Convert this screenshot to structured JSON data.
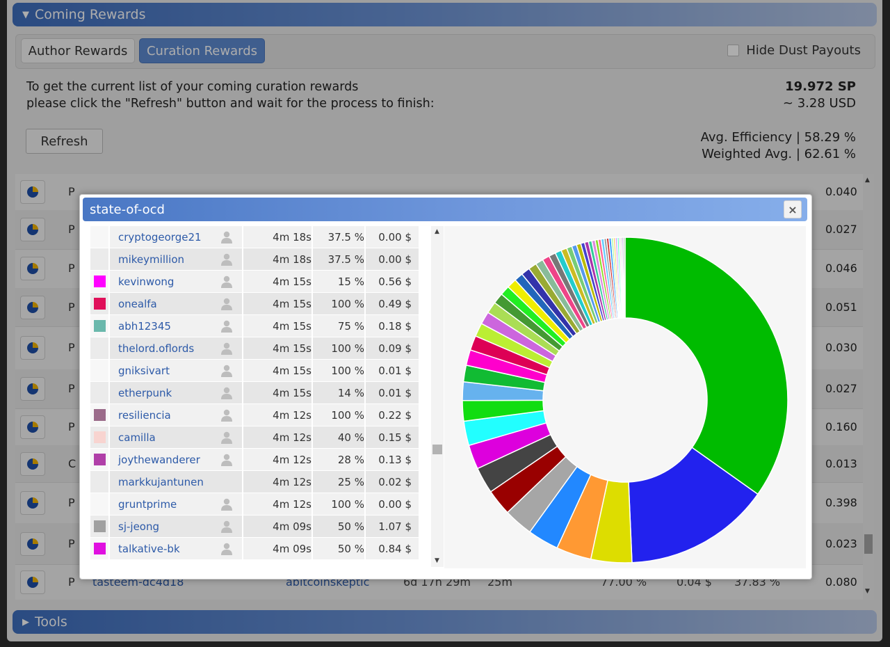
{
  "coming_rewards": {
    "title": "Coming Rewards"
  },
  "tabs": {
    "author": "Author Rewards",
    "curation": "Curation Rewards"
  },
  "hide_dust": "Hide Dust Payouts",
  "info": {
    "line1": "To get the current list of your coming curation rewards",
    "line2": "please click the \"Refresh\" button and wait for the process to finish:"
  },
  "refresh_label": "Refresh",
  "totals": {
    "sp": "19.972 SP",
    "usd": "~ 3.28 USD"
  },
  "efficiency": {
    "avg": "Avg. Efficiency | 58.29 %",
    "weighted": "Weighted Avg. | 62.61 %"
  },
  "table_rows": [
    {
      "type": "P",
      "value": "0.040"
    },
    {
      "type": "P",
      "value": "0.027"
    },
    {
      "type": "P",
      "value": "0.046"
    },
    {
      "type": "P",
      "value": "0.051"
    },
    {
      "type": "P",
      "value": "0.030"
    },
    {
      "type": "P",
      "value": "0.027"
    },
    {
      "type": "P",
      "value": "0.160"
    },
    {
      "type": "C",
      "value": "0.013"
    },
    {
      "type": "P",
      "value": "0.398"
    },
    {
      "type": "P",
      "value": "0.023"
    },
    {
      "type": "P",
      "value": "0.080",
      "permlink": "tasteem-dc4d18",
      "voter": "abitcoinskeptic",
      "age": "6d 17h 29m",
      "vote_time": "25m",
      "efficiency": "77.00 %",
      "usd": "0.04 $",
      "share": "37.83 %"
    }
  ],
  "tools": {
    "title": "Tools"
  },
  "dialog": {
    "title": "state-of-ocd",
    "close": "×",
    "voters": [
      {
        "name": "cryptogeorge21",
        "time": "4m 18s",
        "pct": "37.5 %",
        "usd": "0.00 $",
        "color": "",
        "icon": "user-icon"
      },
      {
        "name": "mikeymillion",
        "time": "4m 18s",
        "pct": "37.5 %",
        "usd": "0.00 $",
        "color": "",
        "icon": "user-icon"
      },
      {
        "name": "kevinwong",
        "time": "4m 15s",
        "pct": "15 %",
        "usd": "0.56 $",
        "color": "#ff00ff",
        "icon": "user-icon"
      },
      {
        "name": "onealfa",
        "time": "4m 15s",
        "pct": "100 %",
        "usd": "0.49 $",
        "color": "#e0105a",
        "icon": "user-icon"
      },
      {
        "name": "abh12345",
        "time": "4m 15s",
        "pct": "75 %",
        "usd": "0.18 $",
        "color": "#6ab8ac",
        "icon": "user-icon"
      },
      {
        "name": "thelord.oflords",
        "time": "4m 15s",
        "pct": "100 %",
        "usd": "0.09 $",
        "color": "",
        "icon": "user-icon"
      },
      {
        "name": "gniksivart",
        "time": "4m 15s",
        "pct": "100 %",
        "usd": "0.01 $",
        "color": "",
        "icon": "user-icon"
      },
      {
        "name": "etherpunk",
        "time": "4m 15s",
        "pct": "14 %",
        "usd": "0.01 $",
        "color": "",
        "icon": "user-icon"
      },
      {
        "name": "resiliencia",
        "time": "4m 12s",
        "pct": "100 %",
        "usd": "0.22 $",
        "color": "#9b6b8a",
        "icon": "user-icon"
      },
      {
        "name": "camilla",
        "time": "4m 12s",
        "pct": "40 %",
        "usd": "0.15 $",
        "color": "#f8d4d0",
        "icon": "user-icon"
      },
      {
        "name": "joythewanderer",
        "time": "4m 12s",
        "pct": "28 %",
        "usd": "0.13 $",
        "color": "#b03fa8",
        "icon": "user-icon"
      },
      {
        "name": "markkujantunen",
        "time": "4m 12s",
        "pct": "25 %",
        "usd": "0.02 $",
        "color": "",
        "icon": ""
      },
      {
        "name": "gruntprime",
        "time": "4m 12s",
        "pct": "100 %",
        "usd": "0.00 $",
        "color": "",
        "icon": "user-icon"
      },
      {
        "name": "sj-jeong",
        "time": "4m 09s",
        "pct": "50 %",
        "usd": "1.07 $",
        "color": "#a0a0a0",
        "icon": "user-icon"
      },
      {
        "name": "talkative-bk",
        "time": "4m 09s",
        "pct": "50 %",
        "usd": "0.84 $",
        "color": "#e010e0",
        "icon": "user-icon"
      }
    ]
  },
  "chart_data": {
    "type": "pie",
    "donut": true,
    "title": "",
    "slices": [
      {
        "value": 36.0,
        "color": "#00bb00"
      },
      {
        "value": 15.0,
        "color": "#2222ee"
      },
      {
        "value": 4.2,
        "color": "#dddd00"
      },
      {
        "value": 3.6,
        "color": "#ff9933"
      },
      {
        "value": 3.2,
        "color": "#2288ff"
      },
      {
        "value": 3.0,
        "color": "#a6a6a6"
      },
      {
        "value": 2.7,
        "color": "#990000"
      },
      {
        "value": 2.7,
        "color": "#444444"
      },
      {
        "value": 2.5,
        "color": "#dd00dd"
      },
      {
        "value": 2.5,
        "color": "#22ffff"
      },
      {
        "value": 2.1,
        "color": "#11dd11"
      },
      {
        "value": 1.9,
        "color": "#66b2ee"
      },
      {
        "value": 1.7,
        "color": "#11bb33"
      },
      {
        "value": 1.6,
        "color": "#ff00cc"
      },
      {
        "value": 1.5,
        "color": "#dd0055"
      },
      {
        "value": 1.4,
        "color": "#bbee33"
      },
      {
        "value": 1.3,
        "color": "#cc66dd"
      },
      {
        "value": 1.2,
        "color": "#aadd55"
      },
      {
        "value": 1.1,
        "color": "#449933"
      },
      {
        "value": 1.0,
        "color": "#22ee22"
      },
      {
        "value": 1.0,
        "color": "#eeee00"
      },
      {
        "value": 0.9,
        "color": "#2266bb"
      },
      {
        "value": 0.9,
        "color": "#3333aa"
      },
      {
        "value": 0.85,
        "color": "#99aa33"
      },
      {
        "value": 0.8,
        "color": "#88bb99"
      },
      {
        "value": 0.75,
        "color": "#ee4488"
      },
      {
        "value": 0.7,
        "color": "#777777"
      },
      {
        "value": 0.65,
        "color": "#22cccc"
      },
      {
        "value": 0.6,
        "color": "#ccbb22"
      },
      {
        "value": 0.55,
        "color": "#77cc77"
      },
      {
        "value": 0.5,
        "color": "#5599ee"
      },
      {
        "value": 0.45,
        "color": "#bbbb00"
      },
      {
        "value": 0.4,
        "color": "#4444cc"
      },
      {
        "value": 0.4,
        "color": "#aa33aa"
      },
      {
        "value": 0.35,
        "color": "#33cc99"
      },
      {
        "value": 0.35,
        "color": "#dd88dd"
      },
      {
        "value": 0.3,
        "color": "#88dd22"
      },
      {
        "value": 0.3,
        "color": "#ff6699"
      },
      {
        "value": 0.3,
        "color": "#66ccff"
      },
      {
        "value": 0.25,
        "color": "#999999"
      },
      {
        "value": 0.25,
        "color": "#cc3333"
      },
      {
        "value": 0.25,
        "color": "#3399ff"
      },
      {
        "value": 0.2,
        "color": "#99ff99"
      },
      {
        "value": 0.2,
        "color": "#ffcc66"
      },
      {
        "value": 0.2,
        "color": "#cc99ff"
      },
      {
        "value": 0.2,
        "color": "#66ffcc"
      },
      {
        "value": 0.15,
        "color": "#ff99cc"
      },
      {
        "value": 0.15,
        "color": "#bbbbbb"
      },
      {
        "value": 0.15,
        "color": "#9966cc"
      },
      {
        "value": 0.15,
        "color": "#66aa66"
      }
    ]
  }
}
